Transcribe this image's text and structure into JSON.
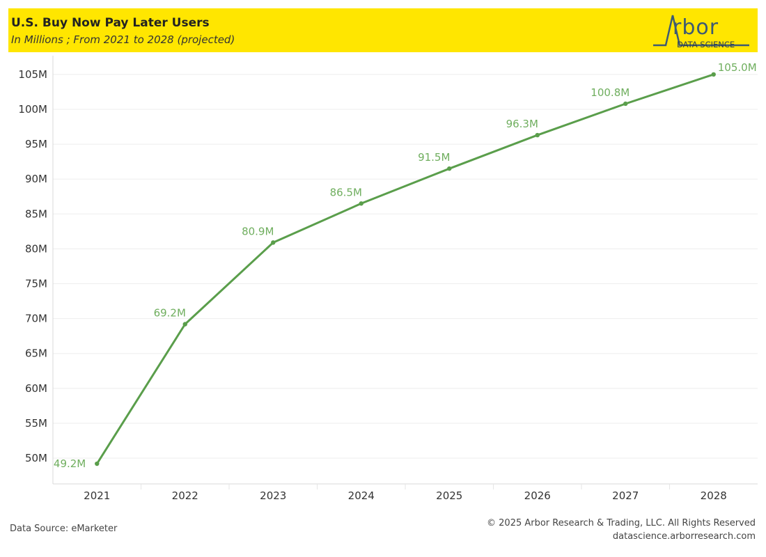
{
  "header": {
    "title": "U.S. Buy Now Pay Later Users",
    "subtitle": "In Millions ; From 2021 to 2028 (projected)",
    "logo_text": "rbor",
    "logo_sub": "DATA SCIENCE",
    "accent_color": "#ffe600"
  },
  "footer": {
    "source": "Data Source: eMarketer",
    "copyright": "© 2025 Arbor Research & Trading, LLC. All Rights Reserved",
    "url": "datascience.arborresearch.com"
  },
  "chart_data": {
    "type": "line",
    "categories": [
      "2021",
      "2022",
      "2023",
      "2024",
      "2025",
      "2026",
      "2027",
      "2028"
    ],
    "series": [
      {
        "values": [
          49.2,
          69.2,
          80.9,
          86.5,
          91.5,
          96.3,
          100.8,
          105.0
        ],
        "labels": [
          "49.2M",
          "69.2M",
          "80.9M",
          "86.5M",
          "91.5M",
          "96.3M",
          "100.8M",
          "105.0M"
        ],
        "color": "#5a9e4b"
      }
    ],
    "yticks": [
      50,
      55,
      60,
      65,
      70,
      75,
      80,
      85,
      90,
      95,
      100,
      105
    ],
    "ytick_labels": [
      "50M",
      "55M",
      "60M",
      "65M",
      "70M",
      "75M",
      "80M",
      "85M",
      "90M",
      "95M",
      "100M",
      "105M"
    ],
    "ylim": [
      48.5,
      107.5
    ],
    "grid": true
  }
}
